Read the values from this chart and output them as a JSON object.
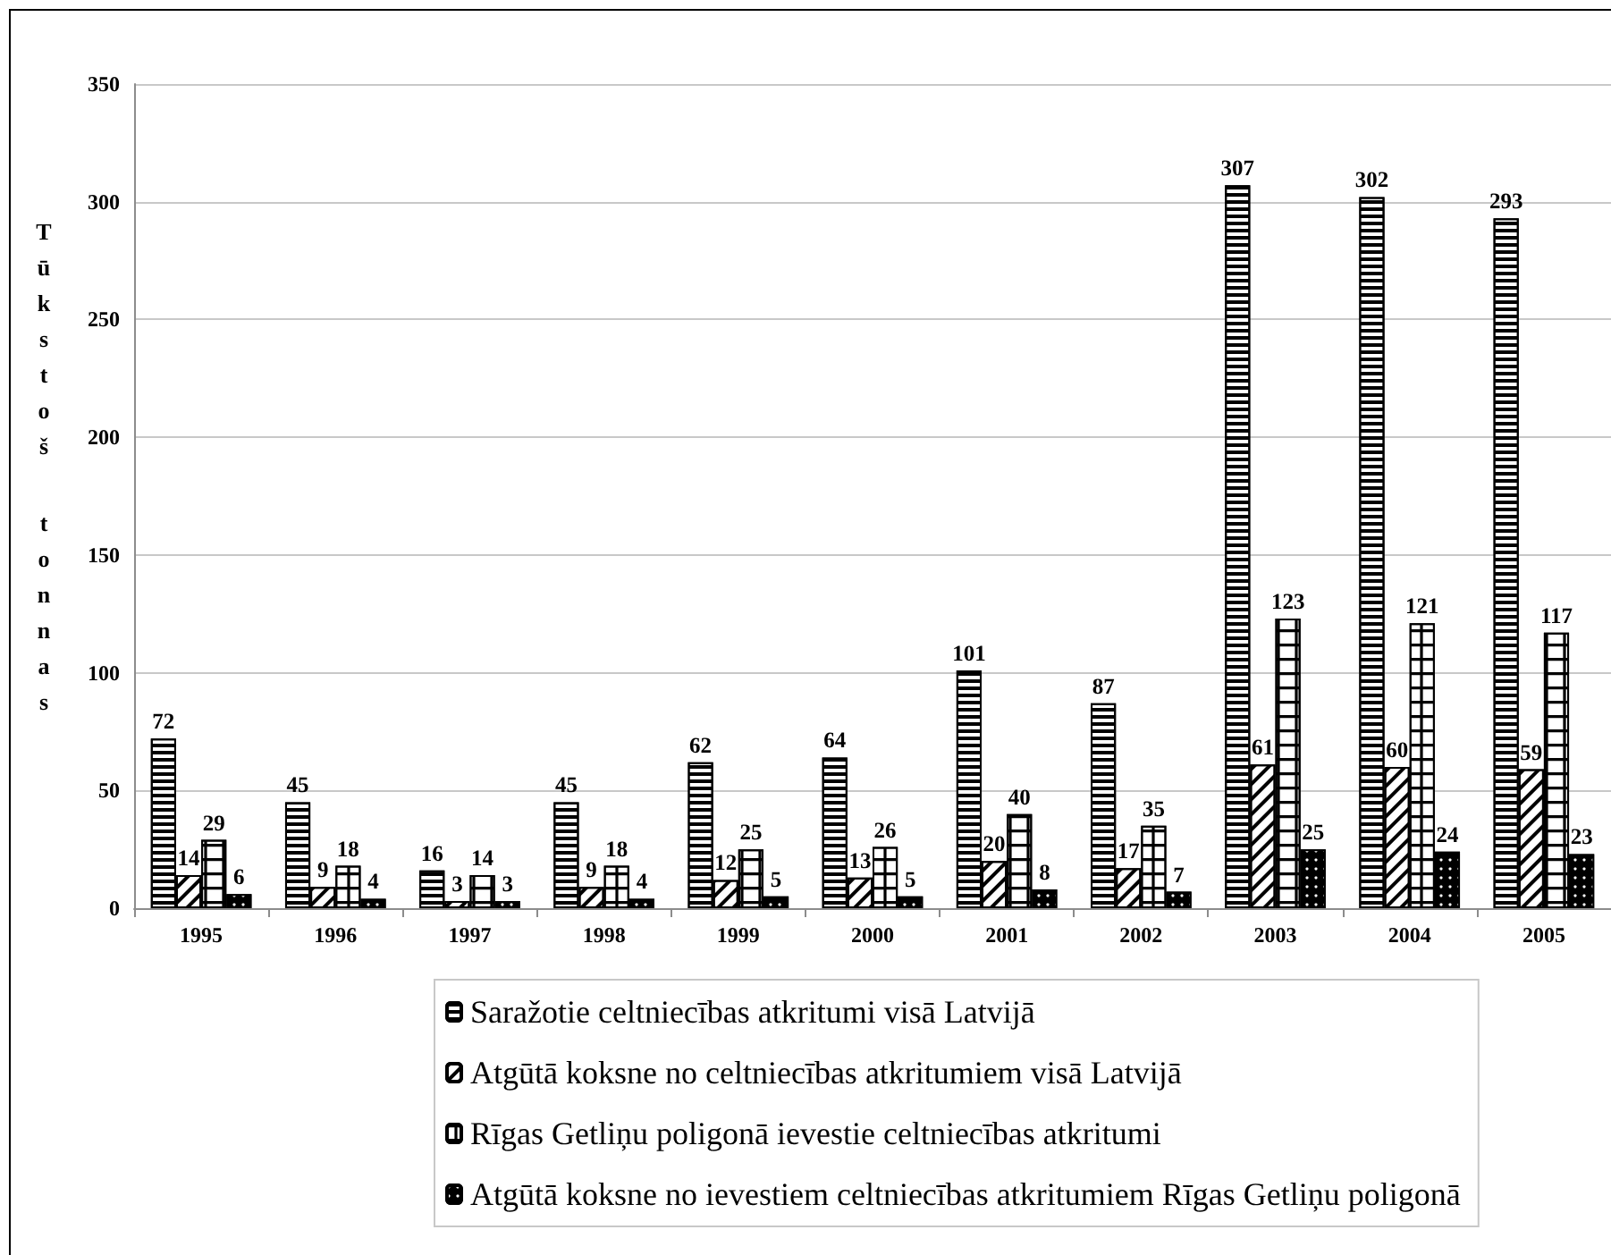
{
  "chart_data": {
    "type": "bar",
    "ylabel": "Tūkstoš tonnas",
    "categories": [
      "1995",
      "1996",
      "1997",
      "1998",
      "1999",
      "2000",
      "2001",
      "2002",
      "2003",
      "2004",
      "2005"
    ],
    "series": [
      {
        "name": "Saražotie celtniecības atkritumi visā Latvijā",
        "color": "#000000",
        "values": [
          72,
          45,
          16,
          45,
          62,
          64,
          101,
          87,
          307,
          302,
          293
        ]
      },
      {
        "name": "Atgūtā koksne no celtniecības atkritumiem visā Latvijā",
        "color": "#000000",
        "values": [
          14,
          9,
          3,
          9,
          12,
          13,
          20,
          17,
          61,
          60,
          59
        ]
      },
      {
        "name": "Rīgas Getliņu poligonā ievestie celtniecības atkritumi",
        "color": "#000000",
        "values": [
          29,
          18,
          14,
          18,
          25,
          26,
          40,
          35,
          123,
          121,
          117
        ]
      },
      {
        "name": "Atgūtā koksne no ievestiem celtniecības atkritumiem Rīgas Getliņu poligonā",
        "color": "#000000",
        "values": [
          6,
          4,
          3,
          4,
          5,
          5,
          8,
          7,
          25,
          24,
          23
        ]
      }
    ],
    "ylim": [
      0,
      350
    ],
    "yticks": [
      0,
      50,
      100,
      150,
      200,
      250,
      300,
      350
    ],
    "grid": "y",
    "legend": "bottom",
    "data_labels": true
  }
}
